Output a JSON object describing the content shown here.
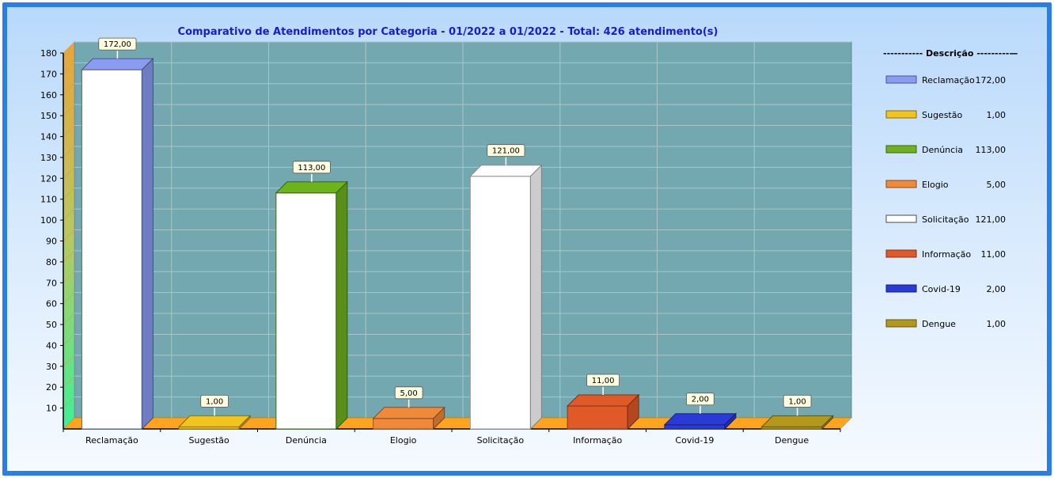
{
  "chart_data": {
    "type": "bar",
    "title": "Comparativo de Atendimentos por Categoria - 01/2022 a 01/2022 - Total: 426 atendimento(s)",
    "categories": [
      "Reclamação",
      "Sugestão",
      "Denúncia",
      "Elogio",
      "Solicitação",
      "Informação",
      "Covid-19",
      "Dengue"
    ],
    "values": [
      172,
      1,
      113,
      5,
      121,
      11,
      2,
      1
    ],
    "value_labels": [
      "172,00",
      "1,00",
      "113,00",
      "5,00",
      "121,00",
      "11,00",
      "2,00",
      "1,00"
    ],
    "colors": [
      "#8a9cf2",
      "#f2c41e",
      "#6db31e",
      "#f08a3a",
      "#ffffff",
      "#e05a28",
      "#2a3ad8",
      "#b3981e"
    ],
    "front_fill": [
      "#ffffff",
      "#f2c41e",
      "#ffffff",
      "#f08a3a",
      "#ffffff",
      "#e05a28",
      "#2a3ad8",
      "#b3981e"
    ],
    "ylim": [
      0,
      180
    ],
    "yticks": [
      10,
      20,
      30,
      40,
      50,
      60,
      70,
      80,
      90,
      100,
      110,
      120,
      130,
      140,
      150,
      160,
      170,
      180
    ],
    "grid": true,
    "legend_position": "right",
    "legend_title": "----------- Descrição ---------—",
    "background_wall": "#74a8b0",
    "floor_color": "#ffa41e"
  }
}
